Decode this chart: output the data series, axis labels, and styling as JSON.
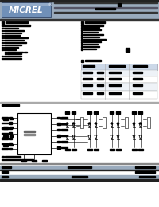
{
  "bg_color": "#ffffff",
  "header_bar_color": "#9aabbd",
  "logo_bg": "#7090b8",
  "logo_text": "MICREL",
  "logo_trademark": "®",
  "text_color": "#000000",
  "light_blue": "#ccd8e8",
  "table_line_color": "#aaaaaa",
  "figsize": [
    2.0,
    2.6
  ],
  "dpi": 100,
  "top_bar_color": "#222222",
  "mid_bar_color": "#555566",
  "footer_bar1": "#9aabbd",
  "footer_bar2": "#222222"
}
